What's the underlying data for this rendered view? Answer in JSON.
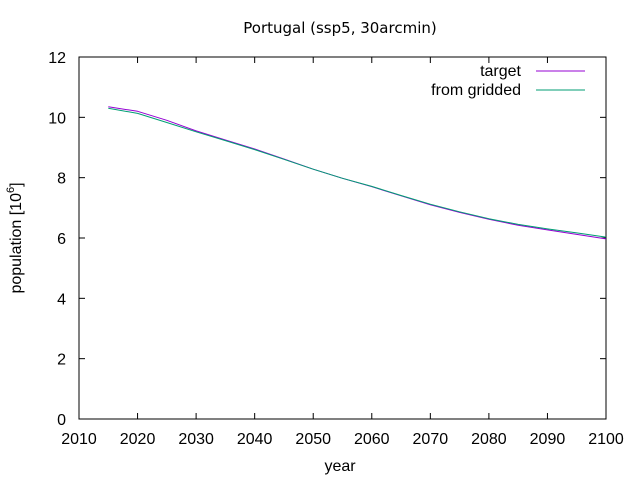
{
  "chart_data": {
    "type": "line",
    "title": "Portugal (ssp5, 30arcmin)",
    "xlabel": "year",
    "ylabel_main": "population [10",
    "ylabel_exp": "6",
    "ylabel_close": "]",
    "xlim": [
      2010,
      2100
    ],
    "ylim": [
      0,
      12
    ],
    "xticks": [
      "2010",
      "2020",
      "2030",
      "2040",
      "2050",
      "2060",
      "2070",
      "2080",
      "2090",
      "2100"
    ],
    "yticks": [
      "0",
      "2",
      "4",
      "6",
      "8",
      "10",
      "12"
    ],
    "grid": false,
    "legend_position": "top-right",
    "series": [
      {
        "name": "target",
        "color": "#9400d3",
        "x": [
          2015,
          2020,
          2025,
          2030,
          2035,
          2040,
          2045,
          2050,
          2055,
          2060,
          2065,
          2070,
          2075,
          2080,
          2085,
          2090,
          2095,
          2100
        ],
        "y": [
          10.35,
          10.2,
          9.9,
          9.55,
          9.25,
          8.95,
          8.62,
          8.28,
          7.98,
          7.7,
          7.4,
          7.1,
          6.85,
          6.62,
          6.42,
          6.27,
          6.12,
          5.97
        ]
      },
      {
        "name": "from gridded",
        "color": "#009e73",
        "x": [
          2015,
          2020,
          2025,
          2030,
          2035,
          2040,
          2045,
          2050,
          2055,
          2060,
          2065,
          2070,
          2075,
          2080,
          2085,
          2090,
          2095,
          2100
        ],
        "y": [
          10.3,
          10.13,
          9.83,
          9.52,
          9.23,
          8.93,
          8.61,
          8.28,
          7.98,
          7.71,
          7.41,
          7.12,
          6.87,
          6.64,
          6.45,
          6.3,
          6.17,
          6.03
        ]
      }
    ]
  }
}
